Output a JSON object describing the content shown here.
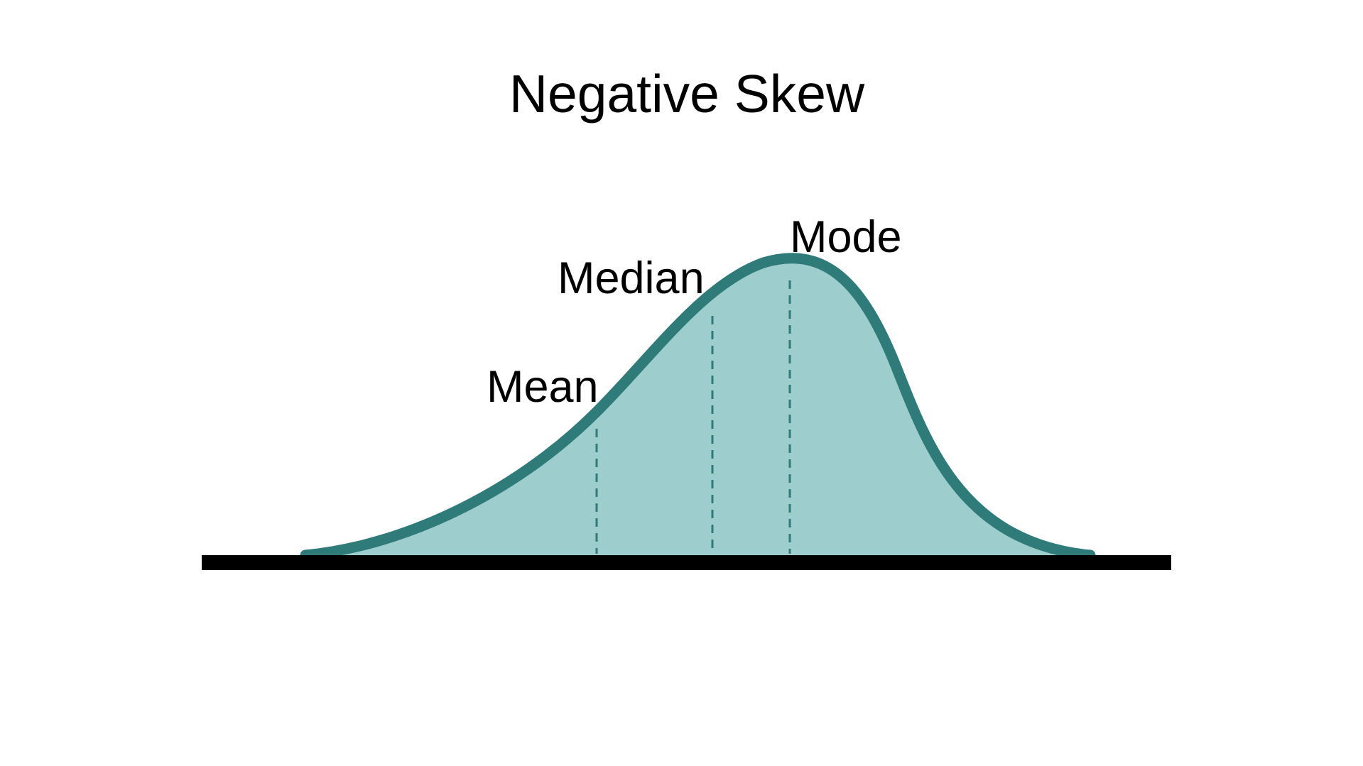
{
  "title": "Negative Skew",
  "markers": [
    {
      "id": "mean",
      "label": "Mean"
    },
    {
      "id": "median",
      "label": "Median"
    },
    {
      "id": "mode",
      "label": "Mode"
    }
  ],
  "colors": {
    "curve_stroke": "#2e7b79",
    "curve_fill": "#9ecdcd",
    "guide_line": "#2e7b79",
    "baseline": "#000000",
    "text": "#000000",
    "background": "#ffffff"
  }
}
